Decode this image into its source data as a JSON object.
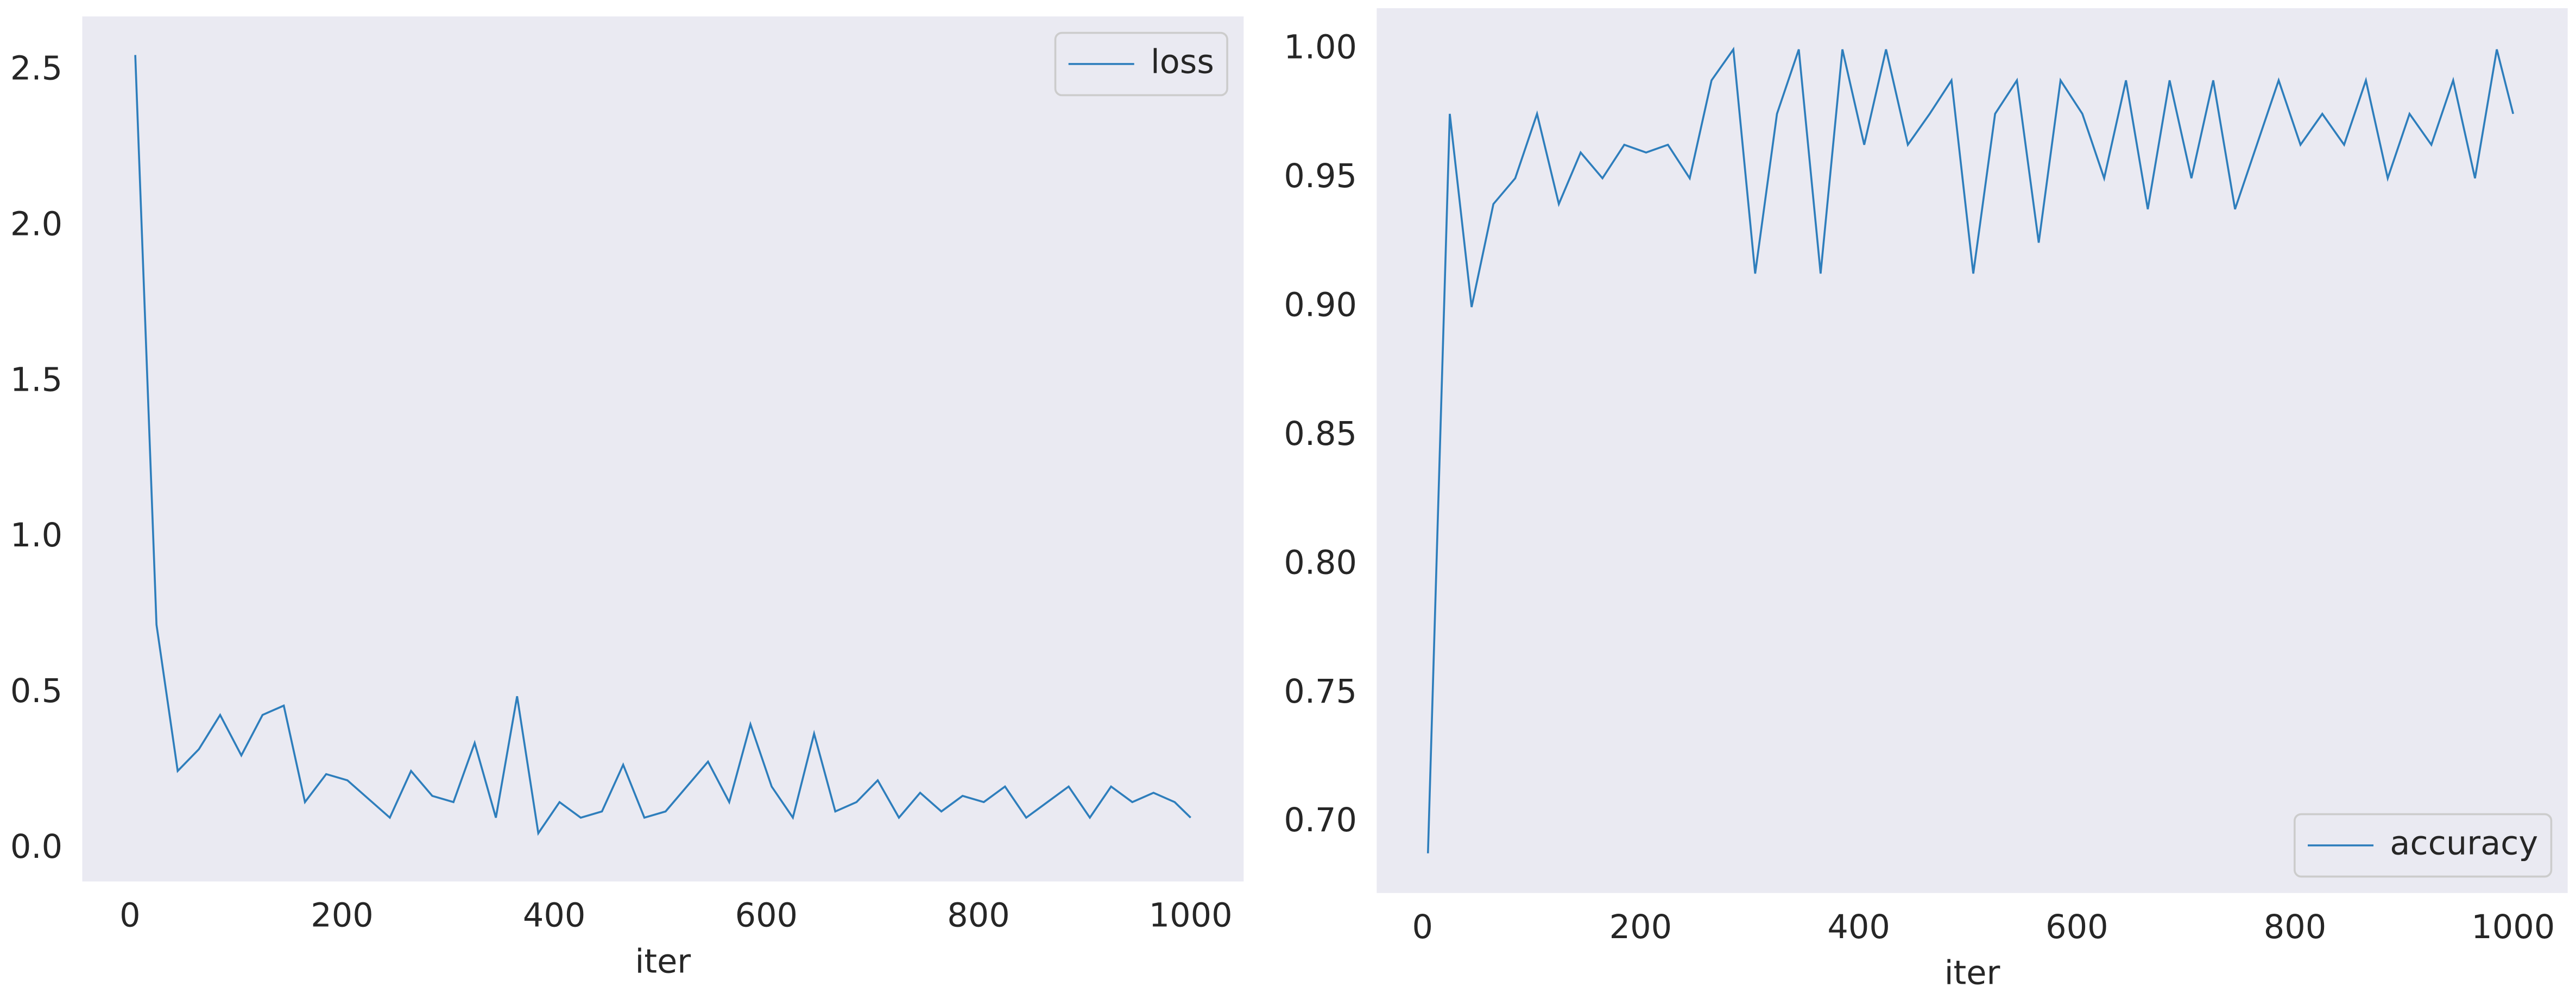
{
  "chart_data": [
    {
      "type": "line",
      "x_label": "iter",
      "x": [
        5,
        25,
        45,
        65,
        85,
        105,
        125,
        145,
        165,
        185,
        205,
        225,
        245,
        265,
        285,
        305,
        325,
        345,
        365,
        385,
        405,
        425,
        445,
        465,
        485,
        505,
        525,
        545,
        565,
        585,
        605,
        625,
        645,
        665,
        685,
        705,
        725,
        745,
        765,
        785,
        805,
        825,
        845,
        865,
        885,
        905,
        925,
        945,
        965,
        985,
        1000
      ],
      "series": [
        {
          "name": "loss",
          "color": "#2e7ebc",
          "values": [
            2.55,
            0.72,
            0.25,
            0.32,
            0.43,
            0.3,
            0.43,
            0.46,
            0.15,
            0.24,
            0.22,
            0.16,
            0.1,
            0.25,
            0.17,
            0.15,
            0.34,
            0.1,
            0.49,
            0.05,
            0.15,
            0.1,
            0.12,
            0.27,
            0.1,
            0.12,
            0.2,
            0.28,
            0.15,
            0.4,
            0.2,
            0.1,
            0.37,
            0.12,
            0.15,
            0.22,
            0.1,
            0.18,
            0.12,
            0.17,
            0.15,
            0.2,
            0.1,
            0.15,
            0.2,
            0.1,
            0.2,
            0.15,
            0.18,
            0.15,
            0.1
          ]
        }
      ],
      "xlim": [
        -45,
        1050
      ],
      "ylim": [
        -0.105,
        2.674
      ],
      "xticks": [
        0,
        200,
        400,
        600,
        800,
        1000
      ],
      "yticks": [
        {
          "value": 0,
          "label": "0.0"
        },
        {
          "value": 0.5,
          "label": "0.5"
        },
        {
          "value": 1,
          "label": "1.0"
        },
        {
          "value": 1.5,
          "label": "1.5"
        },
        {
          "value": 2,
          "label": "2.0"
        },
        {
          "value": 2.5,
          "label": "2.5"
        }
      ],
      "legend": "upper right",
      "grid": false
    },
    {
      "type": "line",
      "x_label": "iter",
      "x": [
        5,
        25,
        45,
        65,
        85,
        105,
        125,
        145,
        165,
        185,
        205,
        225,
        245,
        265,
        285,
        305,
        325,
        345,
        365,
        385,
        405,
        425,
        445,
        465,
        485,
        505,
        525,
        545,
        565,
        585,
        605,
        625,
        645,
        665,
        685,
        705,
        725,
        745,
        765,
        785,
        805,
        825,
        845,
        865,
        885,
        905,
        925,
        945,
        965,
        985,
        1000
      ],
      "series": [
        {
          "name": "accuracy",
          "color": "#2e7ebc",
          "values": [
            0.688,
            0.975,
            0.9,
            0.94,
            0.95,
            0.975,
            0.94,
            0.96,
            0.95,
            0.963,
            0.96,
            0.963,
            0.95,
            0.988,
            1.0,
            0.913,
            0.975,
            1.0,
            0.913,
            1.0,
            0.963,
            1.0,
            0.963,
            0.975,
            0.988,
            0.913,
            0.975,
            0.988,
            0.925,
            0.988,
            0.975,
            0.95,
            0.988,
            0.938,
            0.988,
            0.95,
            0.988,
            0.938,
            0.963,
            0.988,
            0.963,
            0.975,
            0.963,
            0.988,
            0.95,
            0.975,
            0.963,
            0.988,
            0.95,
            1.0,
            0.975
          ]
        }
      ],
      "xlim": [
        -42,
        1050
      ],
      "ylim": [
        0.6726,
        1.016
      ],
      "xticks": [
        0,
        200,
        400,
        600,
        800,
        1000
      ],
      "yticks": [
        {
          "value": 0.7,
          "label": "0.70"
        },
        {
          "value": 0.75,
          "label": "0.75"
        },
        {
          "value": 0.8,
          "label": "0.80"
        },
        {
          "value": 0.85,
          "label": "0.85"
        },
        {
          "value": 0.9,
          "label": "0.90"
        },
        {
          "value": 0.95,
          "label": "0.95"
        },
        {
          "value": 1,
          "label": "1.00"
        }
      ],
      "legend": "lower right",
      "grid": false
    }
  ]
}
